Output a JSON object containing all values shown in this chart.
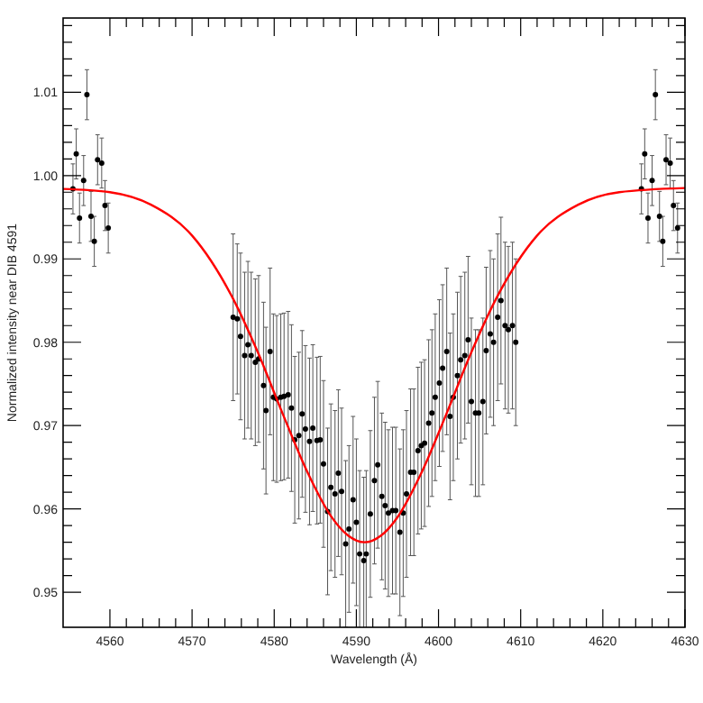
{
  "chart_data": {
    "type": "scatter",
    "xlabel": "Wavelength (Å)",
    "ylabel": "Normalized intensity near DIB 4591",
    "xlim": [
      4554.3,
      4630
    ],
    "ylim": [
      0.9458,
      1.0189
    ],
    "xticks": [
      4560,
      {
        "value": 4562,
        "label": null
      },
      {
        "value": 4564,
        "label": null
      },
      {
        "value": 4566,
        "label": null
      },
      {
        "value": 4568,
        "label": null
      },
      4570,
      {
        "value": 4572,
        "label": null
      },
      {
        "value": 4574,
        "label": null
      },
      {
        "value": 4576,
        "label": null
      },
      {
        "value": 4578,
        "label": null
      },
      4580,
      {
        "value": 4582,
        "label": null
      },
      {
        "value": 4584,
        "label": null
      },
      {
        "value": 4586,
        "label": null
      },
      {
        "value": 4588,
        "label": null
      },
      4590,
      {
        "value": 4592,
        "label": null
      },
      {
        "value": 4594,
        "label": null
      },
      {
        "value": 4596,
        "label": null
      },
      {
        "value": 4598,
        "label": null
      },
      4600,
      {
        "value": 4602,
        "label": null
      },
      {
        "value": 4604,
        "label": null
      },
      {
        "value": 4606,
        "label": null
      },
      {
        "value": 4608,
        "label": null
      },
      4610,
      {
        "value": 4612,
        "label": null
      },
      {
        "value": 4614,
        "label": null
      },
      {
        "value": 4616,
        "label": null
      },
      {
        "value": 4618,
        "label": null
      },
      4620,
      {
        "value": 4622,
        "label": null
      },
      {
        "value": 4624,
        "label": null
      },
      {
        "value": 4626,
        "label": null
      },
      {
        "value": 4628,
        "label": null
      },
      4630
    ],
    "yticks": [
      {
        "value": 0.95,
        "label": "0.95"
      },
      {
        "value": 0.952,
        "label": null
      },
      {
        "value": 0.954,
        "label": null
      },
      {
        "value": 0.956,
        "label": null
      },
      {
        "value": 0.958,
        "label": null
      },
      {
        "value": 0.96,
        "label": "0.96"
      },
      {
        "value": 0.962,
        "label": null
      },
      {
        "value": 0.964,
        "label": null
      },
      {
        "value": 0.966,
        "label": null
      },
      {
        "value": 0.968,
        "label": null
      },
      {
        "value": 0.97,
        "label": "0.97"
      },
      {
        "value": 0.972,
        "label": null
      },
      {
        "value": 0.974,
        "label": null
      },
      {
        "value": 0.976,
        "label": null
      },
      {
        "value": 0.978,
        "label": null
      },
      {
        "value": 0.98,
        "label": "0.98"
      },
      {
        "value": 0.982,
        "label": null
      },
      {
        "value": 0.984,
        "label": null
      },
      {
        "value": 0.986,
        "label": null
      },
      {
        "value": 0.988,
        "label": null
      },
      {
        "value": 0.99,
        "label": "0.99"
      },
      {
        "value": 0.992,
        "label": null
      },
      {
        "value": 0.994,
        "label": null
      },
      {
        "value": 0.996,
        "label": null
      },
      {
        "value": 0.998,
        "label": null
      },
      {
        "value": 1.0,
        "label": "1.00"
      },
      {
        "value": 1.002,
        "label": null
      },
      {
        "value": 1.004,
        "label": null
      },
      {
        "value": 1.006,
        "label": null
      },
      {
        "value": 1.008,
        "label": null
      },
      {
        "value": 1.01,
        "label": "1.01"
      },
      {
        "value": 1.012,
        "label": null
      },
      {
        "value": 1.014,
        "label": null
      },
      {
        "value": 1.016,
        "label": null
      },
      {
        "value": 1.018,
        "label": null
      }
    ],
    "grid": false,
    "series": [
      {
        "color": "#000000",
        "marker": "circle",
        "x": [
          4555.5,
          4555.9,
          4556.3,
          4556.8,
          4557.2,
          4557.7,
          4558.1,
          4558.5,
          4559.0,
          4559.4,
          4559.8,
          4575.0,
          4575.5,
          4575.9,
          4576.4,
          4576.8,
          4577.2,
          4577.7,
          4578.1,
          4578.7,
          4579.0,
          4579.5,
          4579.9,
          4580.3,
          4580.8,
          4581.2,
          4581.7,
          4582.1,
          4582.5,
          4583.0,
          4583.4,
          4583.8,
          4584.3,
          4584.7,
          4585.2,
          4585.6,
          4586.0,
          4586.5,
          4586.9,
          4587.4,
          4587.8,
          4588.2,
          4588.7,
          4589.1,
          4589.6,
          4590.0,
          4590.4,
          4590.9,
          4591.2,
          4591.7,
          4592.2,
          4592.6,
          4593.1,
          4593.5,
          4593.9,
          4594.4,
          4594.8,
          4595.3,
          4595.7,
          4596.1,
          4596.6,
          4597.0,
          4597.5,
          4597.9,
          4598.3,
          4598.8,
          4599.2,
          4599.6,
          4600.1,
          4600.5,
          4601.0,
          4601.4,
          4601.8,
          4602.3,
          4602.7,
          4603.2,
          4603.6,
          4604.0,
          4604.5,
          4604.9,
          4605.4,
          4605.8,
          4606.3,
          4606.7,
          4607.2,
          4607.6,
          4608.1,
          4608.5,
          4609.0,
          4609.4,
          4624.7,
          4625.1,
          4625.5,
          4626.0,
          4626.4,
          4626.9,
          4627.3,
          4627.7,
          4628.2,
          4628.6,
          4629.1
        ],
        "values": [
          0.9984,
          1.0026,
          0.9949,
          0.9994,
          1.0097,
          0.9951,
          0.9921,
          1.0019,
          1.0015,
          0.9964,
          0.9937,
          0.983,
          0.9828,
          0.9807,
          0.9784,
          0.9797,
          0.9784,
          0.9776,
          0.978,
          0.9748,
          0.9718,
          0.9789,
          0.9734,
          0.9732,
          0.9734,
          0.9735,
          0.9737,
          0.9721,
          0.9683,
          0.9688,
          0.9714,
          0.9696,
          0.9681,
          0.9697,
          0.9682,
          0.9683,
          0.9654,
          0.9597,
          0.9626,
          0.9618,
          0.9643,
          0.9621,
          0.9558,
          0.9576,
          0.9611,
          0.9584,
          0.9546,
          0.9538,
          0.9546,
          0.9594,
          0.9634,
          0.9653,
          0.9615,
          0.9604,
          0.9595,
          0.9598,
          0.9598,
          0.9572,
          0.9595,
          0.9618,
          0.9644,
          0.9644,
          0.967,
          0.9676,
          0.9679,
          0.9703,
          0.9715,
          0.9734,
          0.9751,
          0.9769,
          0.9789,
          0.9711,
          0.9734,
          0.976,
          0.9779,
          0.9784,
          0.9803,
          0.9729,
          0.9715,
          0.9715,
          0.9729,
          0.979,
          0.981,
          0.98,
          0.983,
          0.985,
          0.982,
          0.9815,
          0.982,
          0.98,
          0.9984,
          1.0026,
          0.9949,
          0.9994,
          1.0097,
          0.9951,
          0.9921,
          1.0019,
          1.0015,
          0.9964,
          0.9937
        ],
        "errors": [
          0.003,
          0.003,
          0.003,
          0.003,
          0.003,
          0.003,
          0.003,
          0.003,
          0.003,
          0.003,
          0.003,
          0.01,
          0.009,
          0.01,
          0.01,
          0.01,
          0.01,
          0.01,
          0.01,
          0.01,
          0.01,
          0.01,
          0.01,
          0.01,
          0.01,
          0.01,
          0.01,
          0.01,
          0.01,
          0.01,
          0.01,
          0.01,
          0.01,
          0.01,
          0.01,
          0.01,
          0.01,
          0.01,
          0.01,
          0.01,
          0.01,
          0.01,
          0.01,
          0.01,
          0.01,
          0.01,
          0.01,
          0.01,
          0.01,
          0.01,
          0.01,
          0.01,
          0.01,
          0.01,
          0.01,
          0.01,
          0.01,
          0.01,
          0.01,
          0.01,
          0.01,
          0.01,
          0.01,
          0.01,
          0.01,
          0.01,
          0.01,
          0.01,
          0.01,
          0.01,
          0.01,
          0.01,
          0.01,
          0.01,
          0.01,
          0.01,
          0.01,
          0.01,
          0.01,
          0.01,
          0.01,
          0.01,
          0.01,
          0.01,
          0.01,
          0.01,
          0.01,
          0.01,
          0.01,
          0.01,
          0.003,
          0.003,
          0.003,
          0.003,
          0.003,
          0.003,
          0.003,
          0.003,
          0.003,
          0.003,
          0.003
        ]
      },
      {
        "type": "line",
        "color": "#ff0000",
        "marker": "none",
        "line_style": "solid",
        "x": [
          4554.3,
          4560,
          4565,
          4570,
          4575,
          4578,
          4581,
          4584,
          4587,
          4589,
          4591,
          4593,
          4595,
          4598,
          4601,
          4604,
          4607,
          4612,
          4617,
          4622,
          4630
        ],
        "values": [
          0.9984,
          0.998,
          0.9965,
          0.9928,
          0.9852,
          0.9788,
          0.9715,
          0.9645,
          0.959,
          0.9568,
          0.956,
          0.9568,
          0.959,
          0.9645,
          0.9715,
          0.9788,
          0.9852,
          0.9928,
          0.9965,
          0.998,
          0.9985
        ]
      }
    ]
  }
}
